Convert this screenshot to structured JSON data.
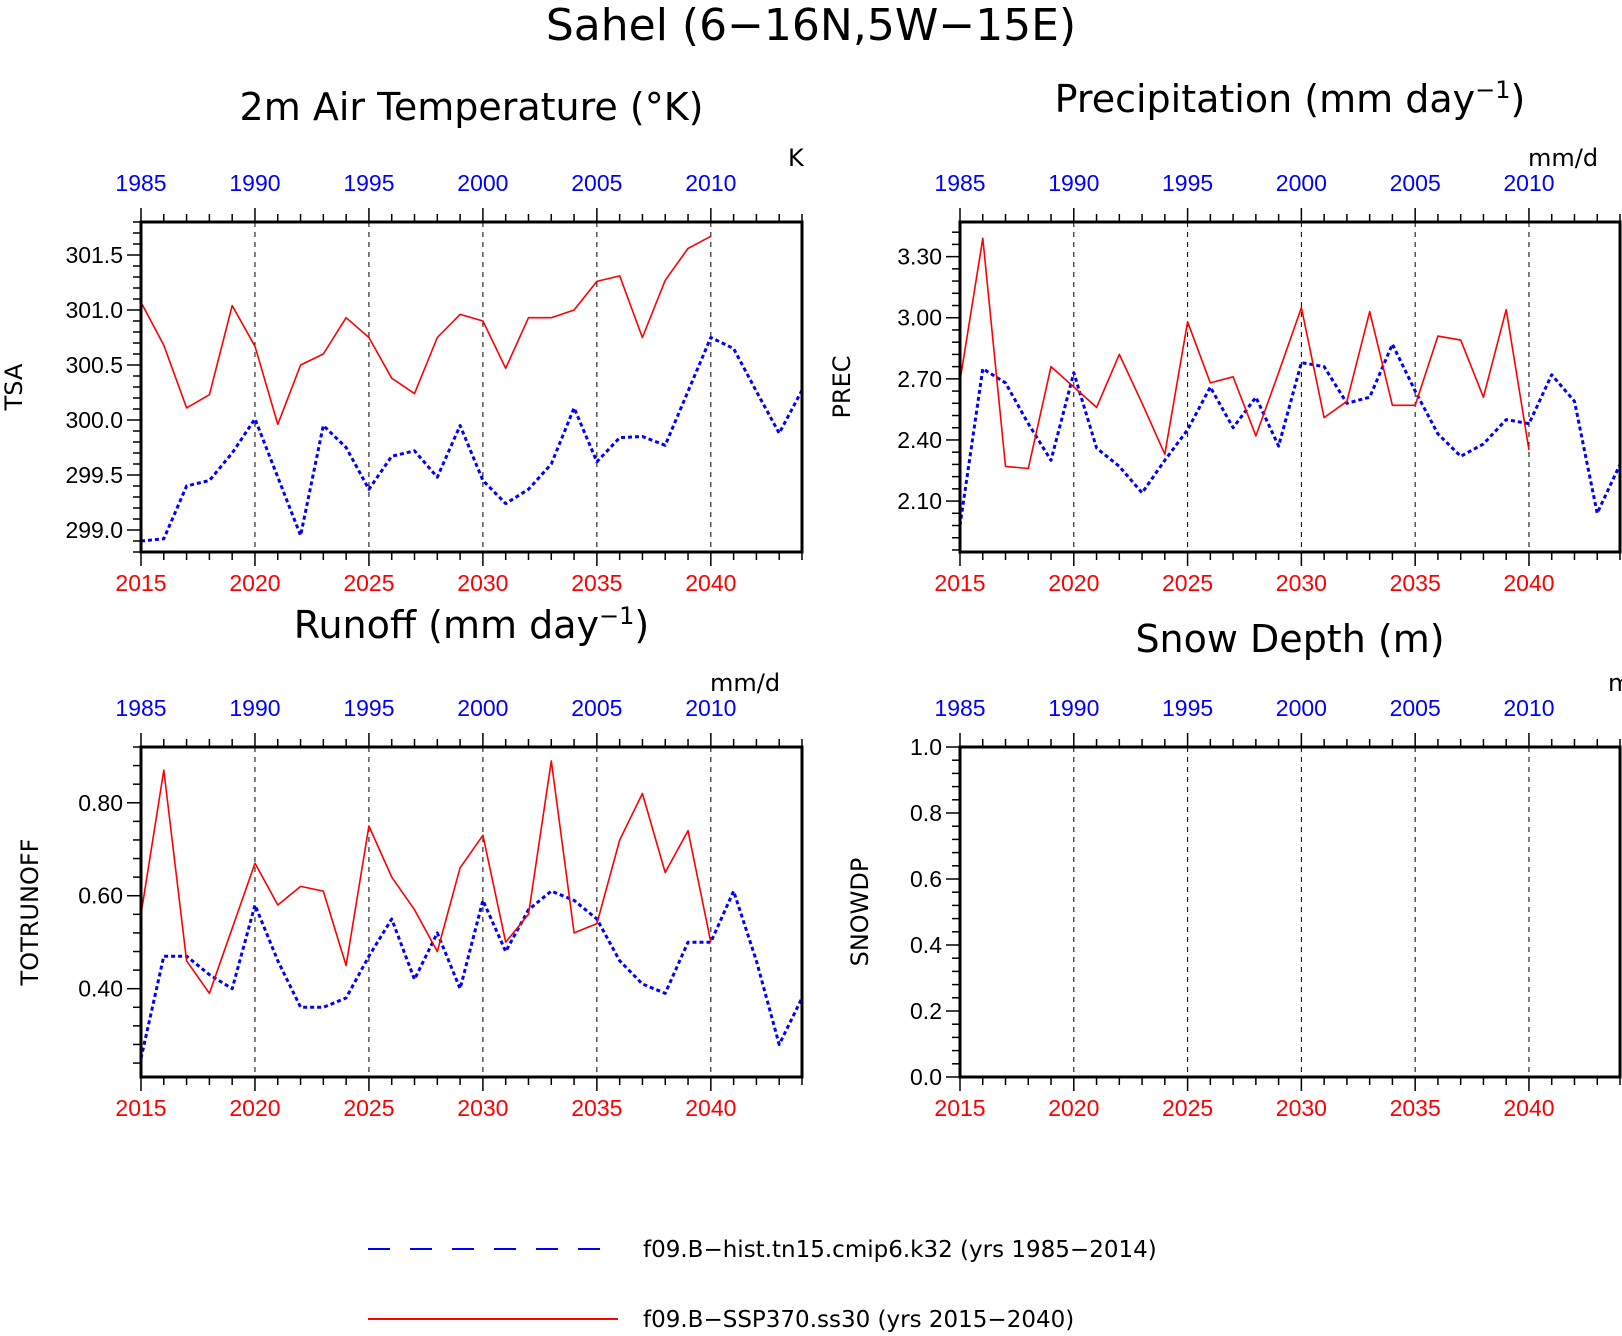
{
  "page": {
    "title": "Sahel (6−16N,5W−15E)"
  },
  "colors": {
    "hist": "#0000ff",
    "ssp": "#ff0000",
    "frame": "#000000"
  },
  "legend": [
    {
      "label": "f09.B−hist.tn15.cmip6.k32 (yrs 1985−2014)",
      "style": "dashed",
      "color": "#0000ff"
    },
    {
      "label": "f09.B−SSP370.ss30 (yrs 2015−2040)",
      "style": "solid",
      "color": "#ff0000"
    }
  ],
  "chart_data": [
    {
      "type": "line",
      "title": "2m Air Temperature (°K)",
      "title_sup": "",
      "title_end": "",
      "ylabel": "TSA",
      "units": "K",
      "xlim": [
        2015,
        2044
      ],
      "ylim": [
        298.8,
        301.8
      ],
      "yticks": [
        299.0,
        299.5,
        300.0,
        300.5,
        301.0,
        301.5
      ],
      "ytick_labels": [
        "299.0",
        "299.5",
        "300.0",
        "300.5",
        "301.0",
        "301.5"
      ],
      "x_bottom_ticks": [
        "2015",
        "2020",
        "2025",
        "2030",
        "2035",
        "2040"
      ],
      "x_top_ticks": [
        "1985",
        "1990",
        "1995",
        "2000",
        "2005",
        "2010"
      ],
      "series": [
        {
          "name": "f09.B−hist.tn15.cmip6.k32 (yrs 1985−2014)",
          "style": "dotted",
          "x_start": 2015,
          "values": [
            298.9,
            298.92,
            299.4,
            299.45,
            299.7,
            300.01,
            299.48,
            298.95,
            299.95,
            299.75,
            299.37,
            299.67,
            299.72,
            299.48,
            299.95,
            299.45,
            299.24,
            299.37,
            299.6,
            300.11,
            299.62,
            299.84,
            299.85,
            299.77,
            300.26,
            300.75,
            300.65,
            300.26,
            299.88,
            300.27
          ]
        },
        {
          "name": "f09.B−SSP370.ss30 (yrs 2015−2040)",
          "style": "solid",
          "x_start": 2015,
          "values": [
            301.07,
            300.68,
            300.11,
            300.23,
            301.04,
            300.67,
            299.96,
            300.5,
            300.6,
            300.93,
            300.75,
            300.38,
            300.24,
            300.75,
            300.96,
            300.9,
            300.47,
            300.93,
            300.93,
            301.0,
            301.26,
            301.31,
            300.75,
            301.27,
            301.56,
            301.67
          ]
        }
      ]
    },
    {
      "type": "line",
      "title": "Precipitation (mm day",
      "title_sup": "−1",
      "title_end": ")",
      "ylabel": "PREC",
      "units": "mm/d",
      "xlim": [
        2015,
        2044
      ],
      "ylim": [
        1.85,
        3.47
      ],
      "yticks": [
        2.1,
        2.4,
        2.7,
        3.0,
        3.3
      ],
      "ytick_labels": [
        "2.10",
        "2.40",
        "2.70",
        "3.00",
        "3.30"
      ],
      "x_bottom_ticks": [
        "2015",
        "2020",
        "2025",
        "2030",
        "2035",
        "2040"
      ],
      "x_top_ticks": [
        "1985",
        "1990",
        "1995",
        "2000",
        "2005",
        "2010"
      ],
      "series": [
        {
          "name": "f09.B−hist.tn15.cmip6.k32 (yrs 1985−2014)",
          "style": "dotted",
          "x_start": 2015,
          "values": [
            1.98,
            2.75,
            2.68,
            2.48,
            2.3,
            2.73,
            2.36,
            2.27,
            2.14,
            2.3,
            2.45,
            2.66,
            2.46,
            2.61,
            2.37,
            2.78,
            2.76,
            2.58,
            2.61,
            2.87,
            2.64,
            2.43,
            2.32,
            2.38,
            2.5,
            2.48,
            2.72,
            2.59,
            2.04,
            2.28
          ]
        },
        {
          "name": "f09.B−SSP370.ss30 (yrs 2015−2040)",
          "style": "solid",
          "x_start": 2015,
          "values": [
            2.69,
            3.39,
            2.27,
            2.26,
            2.76,
            2.66,
            2.56,
            2.82,
            2.58,
            2.33,
            2.98,
            2.68,
            2.71,
            2.42,
            2.73,
            3.05,
            2.51,
            2.59,
            3.03,
            2.57,
            2.57,
            2.91,
            2.89,
            2.61,
            3.04,
            2.35
          ]
        }
      ]
    },
    {
      "type": "line",
      "title": "Runoff (mm day",
      "title_sup": "−1",
      "title_end": ")",
      "ylabel": "TOTRUNOFF",
      "units": "mm/d",
      "xlim": [
        2015,
        2044
      ],
      "ylim": [
        0.21,
        0.92
      ],
      "yticks": [
        0.4,
        0.6,
        0.8
      ],
      "ytick_labels": [
        "0.40",
        "0.60",
        "0.80"
      ],
      "x_bottom_ticks": [
        "2015",
        "2020",
        "2025",
        "2030",
        "2035",
        "2040"
      ],
      "x_top_ticks": [
        "1985",
        "1990",
        "1995",
        "2000",
        "2005",
        "2010"
      ],
      "series": [
        {
          "name": "f09.B−hist.tn15.cmip6.k32 (yrs 1985−2014)",
          "style": "dotted",
          "x_start": 2015,
          "values": [
            0.25,
            0.47,
            0.47,
            0.43,
            0.4,
            0.58,
            0.46,
            0.36,
            0.36,
            0.38,
            0.47,
            0.55,
            0.42,
            0.52,
            0.4,
            0.59,
            0.48,
            0.57,
            0.61,
            0.59,
            0.55,
            0.46,
            0.41,
            0.39,
            0.5,
            0.5,
            0.61,
            0.46,
            0.28,
            0.38
          ]
        },
        {
          "name": "f09.B−SSP370.ss30 (yrs 2015−2040)",
          "style": "solid",
          "x_start": 2015,
          "values": [
            0.56,
            0.87,
            0.46,
            0.39,
            0.53,
            0.67,
            0.58,
            0.62,
            0.61,
            0.45,
            0.75,
            0.64,
            0.57,
            0.48,
            0.66,
            0.73,
            0.5,
            0.56,
            0.89,
            0.52,
            0.54,
            0.72,
            0.82,
            0.65,
            0.74,
            0.5
          ]
        }
      ]
    },
    {
      "type": "line",
      "title": "Snow Depth (m)",
      "title_sup": "",
      "title_end": "",
      "ylabel": "SNOWDP",
      "units": "m",
      "xlim": [
        2015,
        2044
      ],
      "ylim": [
        0.0,
        1.0
      ],
      "yticks": [
        0.0,
        0.2,
        0.4,
        0.6,
        0.8,
        1.0
      ],
      "ytick_labels": [
        "0.0",
        "0.2",
        "0.4",
        "0.6",
        "0.8",
        "1.0"
      ],
      "x_bottom_ticks": [
        "2015",
        "2020",
        "2025",
        "2030",
        "2035",
        "2040"
      ],
      "x_top_ticks": [
        "1985",
        "1990",
        "1995",
        "2000",
        "2005",
        "2010"
      ],
      "series": []
    }
  ]
}
